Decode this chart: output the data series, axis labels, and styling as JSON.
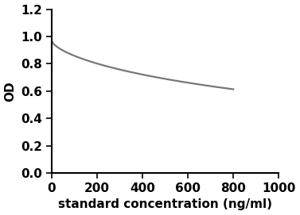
{
  "xlabel": "standard concentration (ng/ml)",
  "ylabel": "OD",
  "xlim": [
    0,
    1000
  ],
  "ylim": [
    0,
    1.2
  ],
  "xticks": [
    0,
    200,
    400,
    600,
    800,
    1000
  ],
  "yticks": [
    0,
    0.2,
    0.4,
    0.6,
    0.8,
    1.0,
    1.2
  ],
  "line_color": "#777777",
  "line_width": 1.6,
  "curve_params": {
    "A": 0.97,
    "B": 0.115,
    "k": 0.007,
    "n": 0.65
  },
  "background_color": "#ffffff",
  "axes_color": "#000000",
  "tick_label_fontsize": 11,
  "axis_label_fontsize": 11,
  "axis_linewidth": 1.5
}
